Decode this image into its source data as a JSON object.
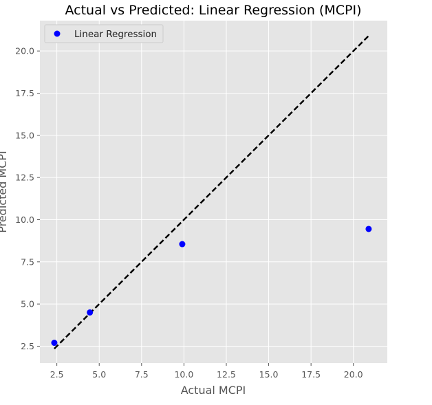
{
  "chart_data": {
    "type": "scatter",
    "title": "Actual vs Predicted: Linear Regression (MCPI)",
    "xlabel": "Actual MCPI",
    "ylabel": "Predicted MCPI",
    "xlim": [
      1.5,
      22.0
    ],
    "ylim": [
      1.5,
      21.8
    ],
    "xticks": [
      2.5,
      5.0,
      7.5,
      10.0,
      12.5,
      15.0,
      17.5,
      20.0
    ],
    "xtick_labels": [
      "2.5",
      "5.0",
      "7.5",
      "10.0",
      "12.5",
      "15.0",
      "17.5",
      "20.0"
    ],
    "yticks": [
      2.5,
      5.0,
      7.5,
      10.0,
      12.5,
      15.0,
      17.5,
      20.0
    ],
    "ytick_labels": [
      "2.5",
      "5.0",
      "7.5",
      "10.0",
      "12.5",
      "15.0",
      "17.5",
      "20.0"
    ],
    "grid": true,
    "legend_position": "top-left",
    "series": [
      {
        "name": "Linear Regression",
        "color": "#0000ff",
        "points": [
          {
            "x": 2.35,
            "y": 2.7
          },
          {
            "x": 4.45,
            "y": 4.5
          },
          {
            "x": 9.9,
            "y": 8.55
          },
          {
            "x": 20.9,
            "y": 9.45
          }
        ]
      }
    ],
    "reference_line": {
      "style": "dashed",
      "color": "#000000",
      "from": {
        "x": 2.35,
        "y": 2.35
      },
      "to": {
        "x": 20.9,
        "y": 20.9
      }
    }
  }
}
